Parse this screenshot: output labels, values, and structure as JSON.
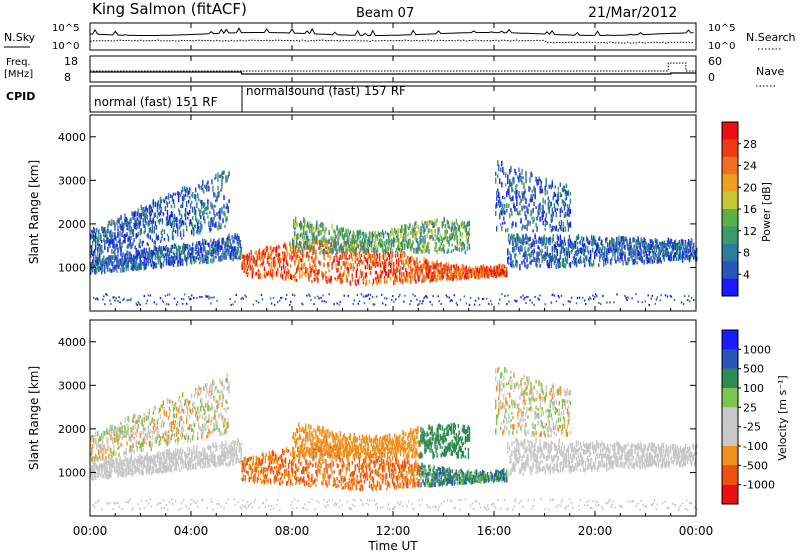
{
  "header": {
    "station": "King Salmon (fitACF)",
    "beam": "Beam 07",
    "date": "21/Mar/2012"
  },
  "noise_panel": {
    "left_label": "N.Sky",
    "right_label": "N.Search",
    "left_ticks": [
      "10^5",
      "10^0"
    ],
    "right_ticks": [
      "10^5",
      "10^0"
    ]
  },
  "freq_panel": {
    "left_label_1": "Freq.",
    "left_label_2": "[MHz]",
    "right_label": "Nave",
    "left_ticks": [
      "18",
      "8"
    ],
    "right_ticks": [
      "60",
      "0"
    ]
  },
  "cpid": {
    "label": "CPID",
    "segments": [
      "normal (fast) 151 RF",
      "normalsound (fast) 157 RF"
    ]
  },
  "colors": {
    "power": [
      "#1a1aff",
      "#2855b8",
      "#2e7aa0",
      "#3a9a6a",
      "#5bb04a",
      "#c8c832",
      "#f0a020",
      "#f07020",
      "#f03c14",
      "#e81010"
    ],
    "velocity": [
      "#e81010",
      "#f05010",
      "#f09020",
      "#c8c8c8",
      "#c8c8c8",
      "#78c850",
      "#2e8a50",
      "#2855b8",
      "#1a1aff"
    ]
  },
  "chart_data": [
    {
      "type": "heatmap",
      "name": "power",
      "ylabel": "Slant Range [km]",
      "ylim": [
        0,
        4500
      ],
      "yticks": [
        1000,
        2000,
        3000,
        4000
      ],
      "colorbar_label": "Power [dB]",
      "colorbar_ticks": [
        "4",
        "8",
        "12",
        "16",
        "20",
        "24",
        "28"
      ],
      "colorbar_range": [
        0,
        32
      ]
    },
    {
      "type": "heatmap",
      "name": "velocity",
      "ylabel": "Slant Range [km]",
      "ylim": [
        0,
        4500
      ],
      "yticks": [
        1000,
        2000,
        3000,
        4000
      ],
      "colorbar_label": "Velocity [m s⁻¹]",
      "colorbar_ticks": [
        "1000",
        "500",
        "100",
        "25",
        "-25",
        "-100",
        "-500",
        "-1000"
      ]
    }
  ],
  "x_axis": {
    "ticks": [
      "00:00",
      "04:00",
      "08:00",
      "12:00",
      "16:00",
      "20:00",
      "00:00"
    ],
    "label": "Time UT"
  }
}
